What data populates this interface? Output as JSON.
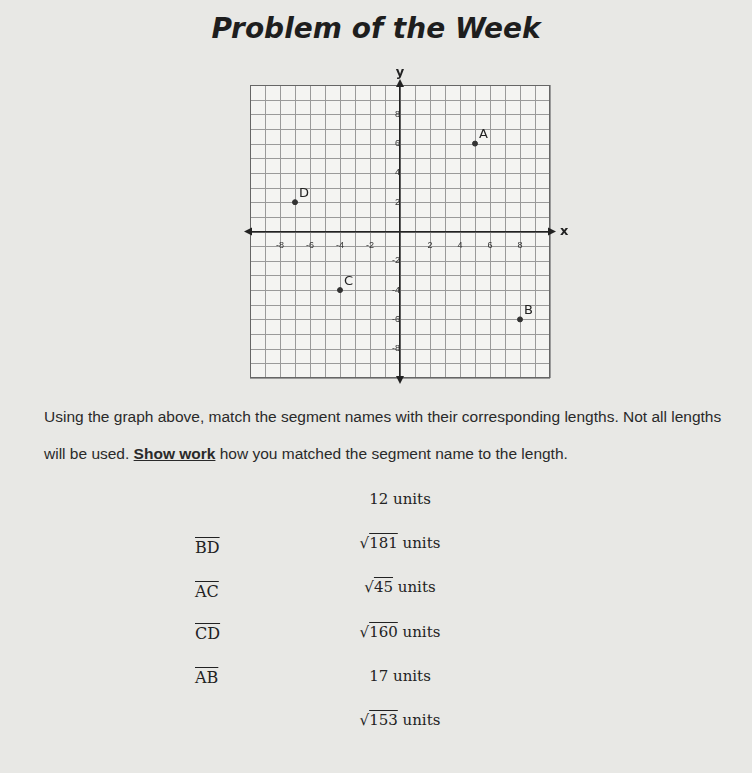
{
  "title": "Problem of the Week",
  "chart_data": {
    "type": "scatter",
    "x_label": "x",
    "y_label": "y",
    "xlim": [
      -10,
      10
    ],
    "ylim": [
      -10,
      10
    ],
    "xticks": [
      -8,
      -6,
      -4,
      -2,
      2,
      4,
      6,
      8
    ],
    "yticks": [
      -8,
      -6,
      -4,
      -2,
      2,
      4,
      6,
      8
    ],
    "grid": true,
    "data_labels": true,
    "marker": "circle",
    "color": "#333333",
    "x": [
      5,
      8,
      -4,
      -7
    ],
    "values": [
      6,
      -6,
      -4,
      2
    ],
    "point_labels": [
      "A",
      "B",
      "C",
      "D"
    ]
  },
  "instructions": {
    "before": "Using the graph above, match the segment names with their corresponding lengths.  Not all lengths will be used.  ",
    "emphasis": "Show work",
    "after": " how you matched the segment name to the length."
  },
  "segments": [
    "BD",
    "AC",
    "CD",
    "AB"
  ],
  "lengths": [
    "12 units",
    "√181 units",
    "√45 units",
    "√160 units",
    "17 units",
    "√153 units"
  ]
}
